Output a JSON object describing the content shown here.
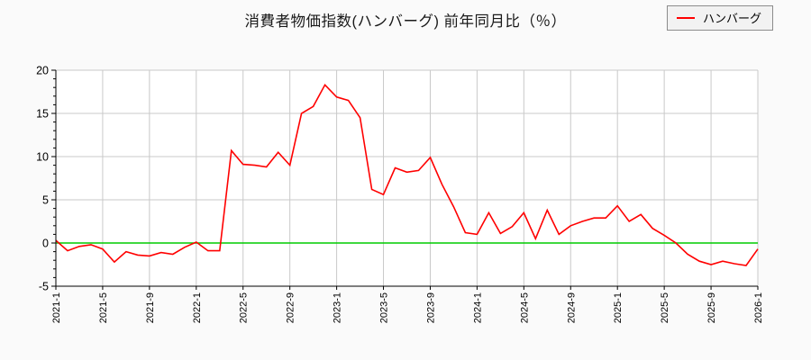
{
  "title": "消費者物価指数(ハンバーグ) 前年同月比（％）",
  "legend": {
    "label": "ハンバーグ",
    "swatch_color": "#ff0000"
  },
  "chart_data": {
    "type": "line",
    "series_name": "ハンバーグ",
    "x": [
      "2021-1",
      "2021-2",
      "2021-3",
      "2021-4",
      "2021-5",
      "2021-6",
      "2021-7",
      "2021-8",
      "2021-9",
      "2021-10",
      "2021-11",
      "2021-12",
      "2022-1",
      "2022-2",
      "2022-3",
      "2022-4",
      "2022-5",
      "2022-6",
      "2022-7",
      "2022-8",
      "2022-9",
      "2022-10",
      "2022-11",
      "2022-12",
      "2023-1",
      "2023-2",
      "2023-3",
      "2023-4",
      "2023-5",
      "2023-6",
      "2023-7",
      "2023-8",
      "2023-9",
      "2023-10",
      "2023-11",
      "2023-12",
      "2024-1",
      "2024-2",
      "2024-3",
      "2024-4",
      "2024-5",
      "2024-6",
      "2024-7",
      "2024-8",
      "2024-9",
      "2024-10",
      "2024-11",
      "2024-12",
      "2025-1",
      "2025-2",
      "2025-3",
      "2025-4",
      "2025-5",
      "2025-6",
      "2025-7",
      "2025-8",
      "2025-9",
      "2025-10",
      "2025-11",
      "2025-12",
      "2026-1"
    ],
    "values": [
      0.3,
      -0.9,
      -0.4,
      -0.2,
      -0.7,
      -2.2,
      -1.0,
      -1.4,
      -1.5,
      -1.1,
      -1.3,
      -0.5,
      0.1,
      -0.9,
      -0.9,
      10.7,
      9.1,
      9.0,
      8.8,
      10.5,
      9.0,
      15.0,
      15.8,
      18.3,
      16.9,
      16.5,
      14.5,
      6.2,
      5.6,
      8.7,
      8.2,
      8.4,
      9.9,
      6.8,
      4.2,
      1.2,
      1.0,
      3.5,
      1.1,
      1.9,
      3.5,
      0.5,
      3.8,
      1.0,
      2.0,
      2.5,
      2.9,
      2.9,
      4.3,
      2.5,
      3.3,
      1.7,
      0.9,
      0.0,
      -1.3,
      -2.1,
      -2.5,
      -2.1,
      -2.4,
      -2.6,
      -0.7
    ],
    "ylim": [
      -5,
      20
    ],
    "y_ticks": [
      -5,
      0,
      5,
      10,
      15,
      20
    ],
    "x_tick_labels": [
      "2021-1",
      "2021-5",
      "2021-9",
      "2022-1",
      "2022-5",
      "2022-9",
      "2023-1",
      "2023-5",
      "2023-9",
      "2024-1",
      "2024-5",
      "2024-9",
      "2025-1",
      "2025-5",
      "2025-9",
      "2026-1"
    ],
    "grid": true,
    "legend_position": "top-right",
    "line_color": "#ff0000",
    "zero_line_color": "#00cc00",
    "grid_color": "#c9c9c9",
    "axis_color": "#000000",
    "plot_bg": "#ffffff",
    "page_bg": "#fafafa",
    "title": "消費者物価指数(ハンバーグ) 前年同月比（％）"
  }
}
